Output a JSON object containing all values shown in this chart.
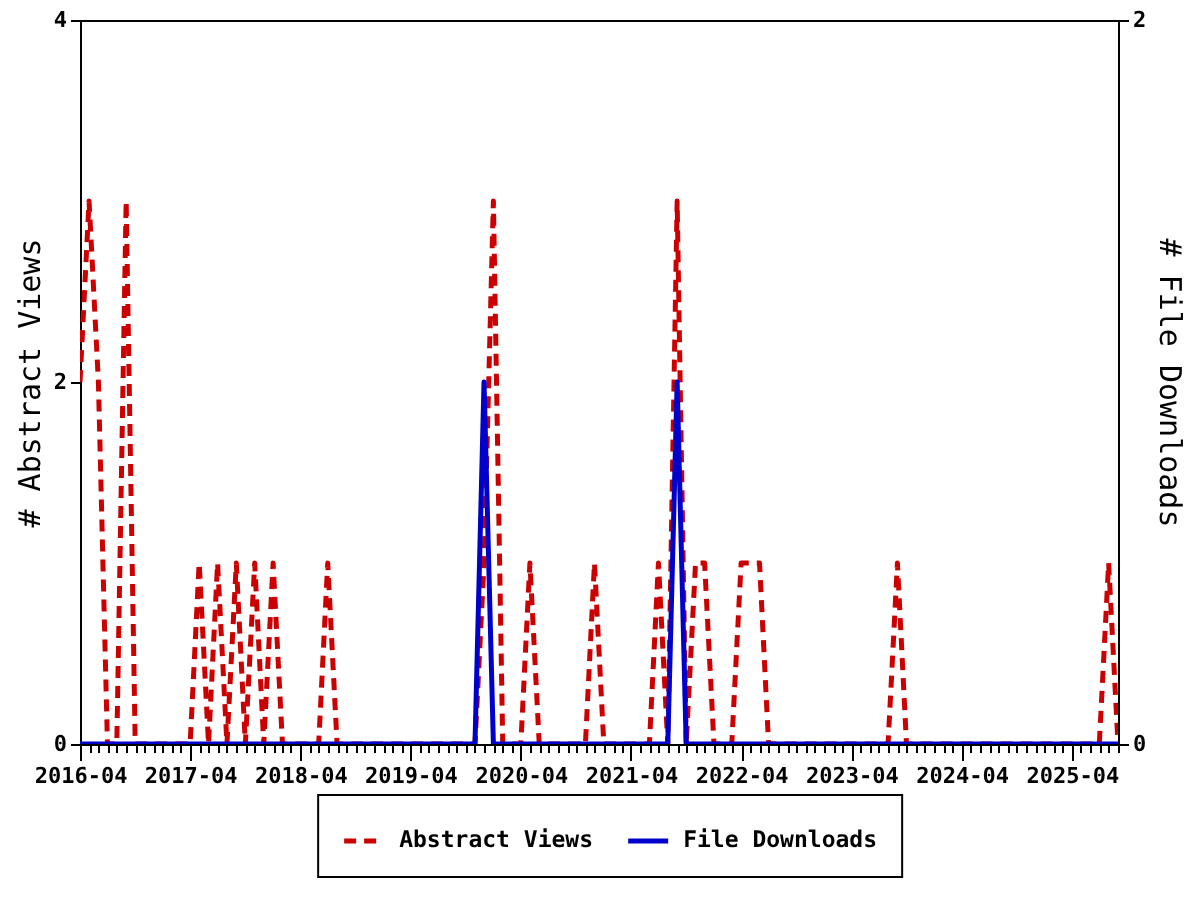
{
  "chart_data": {
    "type": "line",
    "ylabel": "# Abstract Views",
    "y2label": "# File Downloads",
    "x": [
      "2016-04",
      "2016-05",
      "2016-06",
      "2016-07",
      "2016-08",
      "2016-09",
      "2016-10",
      "2016-11",
      "2016-12",
      "2017-01",
      "2017-02",
      "2017-03",
      "2017-04",
      "2017-05",
      "2017-06",
      "2017-07",
      "2017-08",
      "2017-09",
      "2017-10",
      "2017-11",
      "2017-12",
      "2018-01",
      "2018-02",
      "2018-03",
      "2018-04",
      "2018-05",
      "2018-06",
      "2018-07",
      "2018-08",
      "2018-09",
      "2018-10",
      "2018-11",
      "2018-12",
      "2019-01",
      "2019-02",
      "2019-03",
      "2019-04",
      "2019-05",
      "2019-06",
      "2019-07",
      "2019-08",
      "2019-09",
      "2019-10",
      "2019-11",
      "2019-12",
      "2020-01",
      "2020-02",
      "2020-03",
      "2020-04",
      "2020-05",
      "2020-06",
      "2020-07",
      "2020-08",
      "2020-09",
      "2020-10",
      "2020-11",
      "2020-12",
      "2021-01",
      "2021-02",
      "2021-03",
      "2021-04",
      "2021-05",
      "2021-06",
      "2021-07",
      "2021-08",
      "2021-09",
      "2021-10",
      "2021-11",
      "2021-12",
      "2022-01",
      "2022-02",
      "2022-03",
      "2022-04",
      "2022-05",
      "2022-06",
      "2022-07",
      "2022-08",
      "2022-09",
      "2022-10",
      "2022-11",
      "2022-12",
      "2023-01",
      "2023-02",
      "2023-03",
      "2023-04",
      "2023-05",
      "2023-06",
      "2023-07",
      "2023-08",
      "2023-09",
      "2023-10",
      "2023-11",
      "2023-12",
      "2024-01",
      "2024-02",
      "2024-03",
      "2024-04",
      "2024-05",
      "2024-06",
      "2024-07",
      "2024-08",
      "2024-09",
      "2024-10",
      "2024-11",
      "2024-12",
      "2025-01",
      "2025-02",
      "2025-03",
      "2025-04",
      "2025-05",
      "2025-06",
      "2025-07",
      "2025-08",
      "2025-09"
    ],
    "xlim": [
      "2016-04",
      "2025-09"
    ],
    "xticks": [
      "2016-04",
      {
        "value": "2016-05",
        "label": null
      },
      {
        "value": "2016-06",
        "label": null
      },
      {
        "value": "2016-07",
        "label": null
      },
      {
        "value": "2016-08",
        "label": null
      },
      {
        "value": "2016-09",
        "label": null
      },
      {
        "value": "2016-10",
        "label": null
      },
      {
        "value": "2016-11",
        "label": null
      },
      {
        "value": "2016-12",
        "label": null
      },
      {
        "value": "2017-01",
        "label": null
      },
      {
        "value": "2017-02",
        "label": null
      },
      {
        "value": "2017-03",
        "label": null
      },
      "2017-04",
      {
        "value": "2017-05",
        "label": null
      },
      {
        "value": "2017-06",
        "label": null
      },
      {
        "value": "2017-07",
        "label": null
      },
      {
        "value": "2017-08",
        "label": null
      },
      {
        "value": "2017-09",
        "label": null
      },
      {
        "value": "2017-10",
        "label": null
      },
      {
        "value": "2017-11",
        "label": null
      },
      {
        "value": "2017-12",
        "label": null
      },
      {
        "value": "2018-01",
        "label": null
      },
      {
        "value": "2018-02",
        "label": null
      },
      {
        "value": "2018-03",
        "label": null
      },
      "2018-04",
      {
        "value": "2018-05",
        "label": null
      },
      {
        "value": "2018-06",
        "label": null
      },
      {
        "value": "2018-07",
        "label": null
      },
      {
        "value": "2018-08",
        "label": null
      },
      {
        "value": "2018-09",
        "label": null
      },
      {
        "value": "2018-10",
        "label": null
      },
      {
        "value": "2018-11",
        "label": null
      },
      {
        "value": "2018-12",
        "label": null
      },
      {
        "value": "2019-01",
        "label": null
      },
      {
        "value": "2019-02",
        "label": null
      },
      {
        "value": "2019-03",
        "label": null
      },
      "2019-04",
      {
        "value": "2019-05",
        "label": null
      },
      {
        "value": "2019-06",
        "label": null
      },
      {
        "value": "2019-07",
        "label": null
      },
      {
        "value": "2019-08",
        "label": null
      },
      {
        "value": "2019-09",
        "label": null
      },
      {
        "value": "2019-10",
        "label": null
      },
      {
        "value": "2019-11",
        "label": null
      },
      {
        "value": "2019-12",
        "label": null
      },
      {
        "value": "2020-01",
        "label": null
      },
      {
        "value": "2020-02",
        "label": null
      },
      {
        "value": "2020-03",
        "label": null
      },
      "2020-04",
      {
        "value": "2020-05",
        "label": null
      },
      {
        "value": "2020-06",
        "label": null
      },
      {
        "value": "2020-07",
        "label": null
      },
      {
        "value": "2020-08",
        "label": null
      },
      {
        "value": "2020-09",
        "label": null
      },
      {
        "value": "2020-10",
        "label": null
      },
      {
        "value": "2020-11",
        "label": null
      },
      {
        "value": "2020-12",
        "label": null
      },
      {
        "value": "2021-01",
        "label": null
      },
      {
        "value": "2021-02",
        "label": null
      },
      {
        "value": "2021-03",
        "label": null
      },
      "2021-04",
      {
        "value": "2021-05",
        "label": null
      },
      {
        "value": "2021-06",
        "label": null
      },
      {
        "value": "2021-07",
        "label": null
      },
      {
        "value": "2021-08",
        "label": null
      },
      {
        "value": "2021-09",
        "label": null
      },
      {
        "value": "2021-10",
        "label": null
      },
      {
        "value": "2021-11",
        "label": null
      },
      {
        "value": "2021-12",
        "label": null
      },
      {
        "value": "2022-01",
        "label": null
      },
      {
        "value": "2022-02",
        "label": null
      },
      {
        "value": "2022-03",
        "label": null
      },
      "2022-04",
      {
        "value": "2022-05",
        "label": null
      },
      {
        "value": "2022-06",
        "label": null
      },
      {
        "value": "2022-07",
        "label": null
      },
      {
        "value": "2022-08",
        "label": null
      },
      {
        "value": "2022-09",
        "label": null
      },
      {
        "value": "2022-10",
        "label": null
      },
      {
        "value": "2022-11",
        "label": null
      },
      {
        "value": "2022-12",
        "label": null
      },
      {
        "value": "2023-01",
        "label": null
      },
      {
        "value": "2023-02",
        "label": null
      },
      {
        "value": "2023-03",
        "label": null
      },
      "2023-04",
      {
        "value": "2023-05",
        "label": null
      },
      {
        "value": "2023-06",
        "label": null
      },
      {
        "value": "2023-07",
        "label": null
      },
      {
        "value": "2023-08",
        "label": null
      },
      {
        "value": "2023-09",
        "label": null
      },
      {
        "value": "2023-10",
        "label": null
      },
      {
        "value": "2023-11",
        "label": null
      },
      {
        "value": "2023-12",
        "label": null
      },
      {
        "value": "2024-01",
        "label": null
      },
      {
        "value": "2024-02",
        "label": null
      },
      {
        "value": "2024-03",
        "label": null
      },
      "2024-04",
      {
        "value": "2024-05",
        "label": null
      },
      {
        "value": "2024-06",
        "label": null
      },
      {
        "value": "2024-07",
        "label": null
      },
      {
        "value": "2024-08",
        "label": null
      },
      {
        "value": "2024-09",
        "label": null
      },
      {
        "value": "2024-10",
        "label": null
      },
      {
        "value": "2024-11",
        "label": null
      },
      {
        "value": "2024-12",
        "label": null
      },
      {
        "value": "2025-01",
        "label": null
      },
      {
        "value": "2025-02",
        "label": null
      },
      {
        "value": "2025-03",
        "label": null
      },
      "2025-04",
      {
        "value": "2025-05",
        "label": null
      },
      {
        "value": "2025-06",
        "label": null
      },
      {
        "value": "2025-07",
        "label": null
      },
      {
        "value": "2025-08",
        "label": null
      },
      {
        "value": "2025-09",
        "label": null
      }
    ],
    "ylim": [
      0,
      4
    ],
    "yticks": [
      0,
      2,
      4
    ],
    "y2lim": [
      0,
      2
    ],
    "y2ticks": [
      0,
      2
    ],
    "grid": false,
    "legend": "bottom",
    "series": [
      {
        "name": "Abstract Views",
        "color": "#cc0000",
        "line_style": "dashed",
        "values": [
          2,
          3,
          2,
          0,
          0,
          3,
          0,
          0,
          0,
          0,
          0,
          0,
          0,
          1,
          0,
          1,
          0,
          1,
          0,
          1,
          0,
          1,
          0,
          0,
          0,
          0,
          0,
          1,
          0,
          0,
          0,
          0,
          0,
          0,
          0,
          0,
          0,
          0,
          0,
          0,
          0,
          0,
          0,
          0,
          1,
          3,
          0,
          0,
          0,
          1,
          0,
          0,
          0,
          0,
          0,
          0,
          1,
          0,
          0,
          0,
          0,
          0,
          0,
          1,
          0,
          3,
          0,
          1,
          1,
          0,
          0,
          0,
          1,
          1,
          1,
          0,
          0,
          0,
          0,
          0,
          0,
          0,
          0,
          0,
          0,
          0,
          0,
          0,
          0,
          1,
          0,
          0,
          0,
          0,
          0,
          0,
          0,
          0,
          0,
          0,
          0,
          0,
          0,
          0,
          0,
          0,
          0,
          0,
          0,
          0,
          0,
          0,
          1,
          0
        ]
      },
      {
        "name": "File Downloads",
        "color": "#0000cc",
        "line_style": "solid",
        "axis": "y2",
        "values": [
          0,
          0,
          0,
          0,
          0,
          0,
          0,
          0,
          0,
          0,
          0,
          0,
          0,
          0,
          0,
          0,
          0,
          0,
          0,
          0,
          0,
          0,
          0,
          0,
          0,
          0,
          0,
          0,
          0,
          0,
          0,
          0,
          0,
          0,
          0,
          0,
          0,
          0,
          0,
          0,
          0,
          0,
          0,
          0,
          1,
          0,
          0,
          0,
          0,
          0,
          0,
          0,
          0,
          0,
          0,
          0,
          0,
          0,
          0,
          0,
          0,
          0,
          0,
          0,
          0,
          1,
          0,
          0,
          0,
          0,
          0,
          0,
          0,
          0,
          0,
          0,
          0,
          0,
          0,
          0,
          0,
          0,
          0,
          0,
          0,
          0,
          0,
          0,
          0,
          0,
          0,
          0,
          0,
          0,
          0,
          0,
          0,
          0,
          0,
          0,
          0,
          0,
          0,
          0,
          0,
          0,
          0,
          0,
          0,
          0,
          0,
          0,
          0,
          0
        ]
      }
    ]
  }
}
